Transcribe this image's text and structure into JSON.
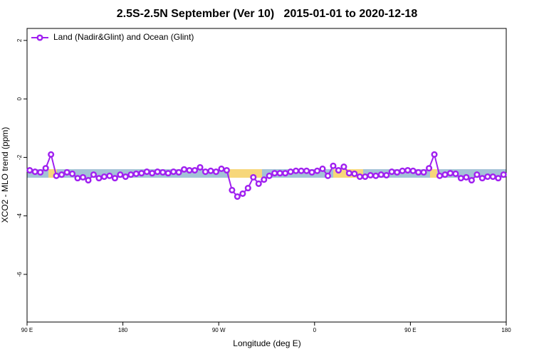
{
  "chart_data": {
    "type": "line",
    "title": "2.5S-2.5N September (Ver 10)   2015-01-01 to 2020-12-18",
    "xlabel": "Longitude (deg E)",
    "ylabel": "XCO2 - MLO trend (ppm)",
    "x": [
      92.5,
      97.5,
      102.5,
      107.5,
      112.5,
      117.5,
      122.5,
      127.5,
      132.5,
      137.5,
      142.5,
      147.5,
      152.5,
      157.5,
      162.5,
      167.5,
      172.5,
      177.5,
      182.5,
      187.5,
      192.5,
      197.5,
      202.5,
      207.5,
      212.5,
      217.5,
      222.5,
      227.5,
      232.5,
      237.5,
      242.5,
      247.5,
      252.5,
      257.5,
      262.5,
      267.5,
      272.5,
      277.5,
      282.5,
      287.5,
      292.5,
      297.5,
      302.5,
      307.5,
      312.5,
      317.5,
      322.5,
      327.5,
      332.5,
      337.5,
      342.5,
      347.5,
      352.5,
      357.5,
      362.5,
      367.5,
      372.5,
      377.5,
      382.5,
      387.5,
      392.5,
      397.5,
      402.5,
      407.5,
      412.5,
      417.5,
      422.5,
      427.5,
      432.5,
      437.5,
      442.5,
      447.5,
      452.5,
      457.5,
      462.5,
      467.5,
      472.5,
      477.5,
      482.5,
      487.5,
      492.5,
      497.5,
      502.5,
      507.5,
      512.5,
      517.5,
      522.5,
      527.5,
      532.5,
      537.5
    ],
    "series": [
      {
        "name": "Land (Nadir&Glint) and Ocean (Glint)",
        "color": "#a020f0",
        "values": [
          -2.44,
          -2.49,
          -2.51,
          -2.37,
          -1.9,
          -2.63,
          -2.59,
          -2.51,
          -2.56,
          -2.71,
          -2.68,
          -2.78,
          -2.59,
          -2.71,
          -2.66,
          -2.63,
          -2.71,
          -2.59,
          -2.66,
          -2.59,
          -2.56,
          -2.54,
          -2.49,
          -2.54,
          -2.49,
          -2.51,
          -2.54,
          -2.49,
          -2.51,
          -2.41,
          -2.44,
          -2.44,
          -2.34,
          -2.49,
          -2.46,
          -2.49,
          -2.39,
          -2.44,
          -3.12,
          -3.34,
          -3.24,
          -3.05,
          -2.68,
          -2.9,
          -2.76,
          -2.63,
          -2.54,
          -2.54,
          -2.54,
          -2.49,
          -2.46,
          -2.46,
          -2.46,
          -2.51,
          -2.46,
          -2.39,
          -2.63,
          -2.29,
          -2.44,
          -2.32,
          -2.54,
          -2.56,
          -2.66,
          -2.66,
          -2.61,
          -2.63,
          -2.59,
          -2.61,
          -2.49,
          -2.51,
          -2.46,
          -2.44,
          -2.46,
          -2.51,
          -2.51,
          -2.37,
          -1.9,
          -2.63,
          -2.59,
          -2.54,
          -2.56,
          -2.71,
          -2.68,
          -2.78,
          -2.59,
          -2.71,
          -2.66,
          -2.66,
          -2.71,
          -2.59
        ]
      }
    ],
    "xlim": [
      90,
      540
    ],
    "xticks": [
      {
        "value": 90,
        "label": "90 E"
      },
      {
        "value": 180,
        "label": "180"
      },
      {
        "value": 270,
        "label": "90 W"
      },
      {
        "value": 360,
        "label": "0"
      },
      {
        "value": 450,
        "label": "90 E"
      },
      {
        "value": 540,
        "label": "180"
      }
    ],
    "ylim": [
      -7.63,
      2.41
    ],
    "yticks": [
      2,
      0,
      -2,
      -4,
      -6
    ],
    "legend": "top-left"
  }
}
